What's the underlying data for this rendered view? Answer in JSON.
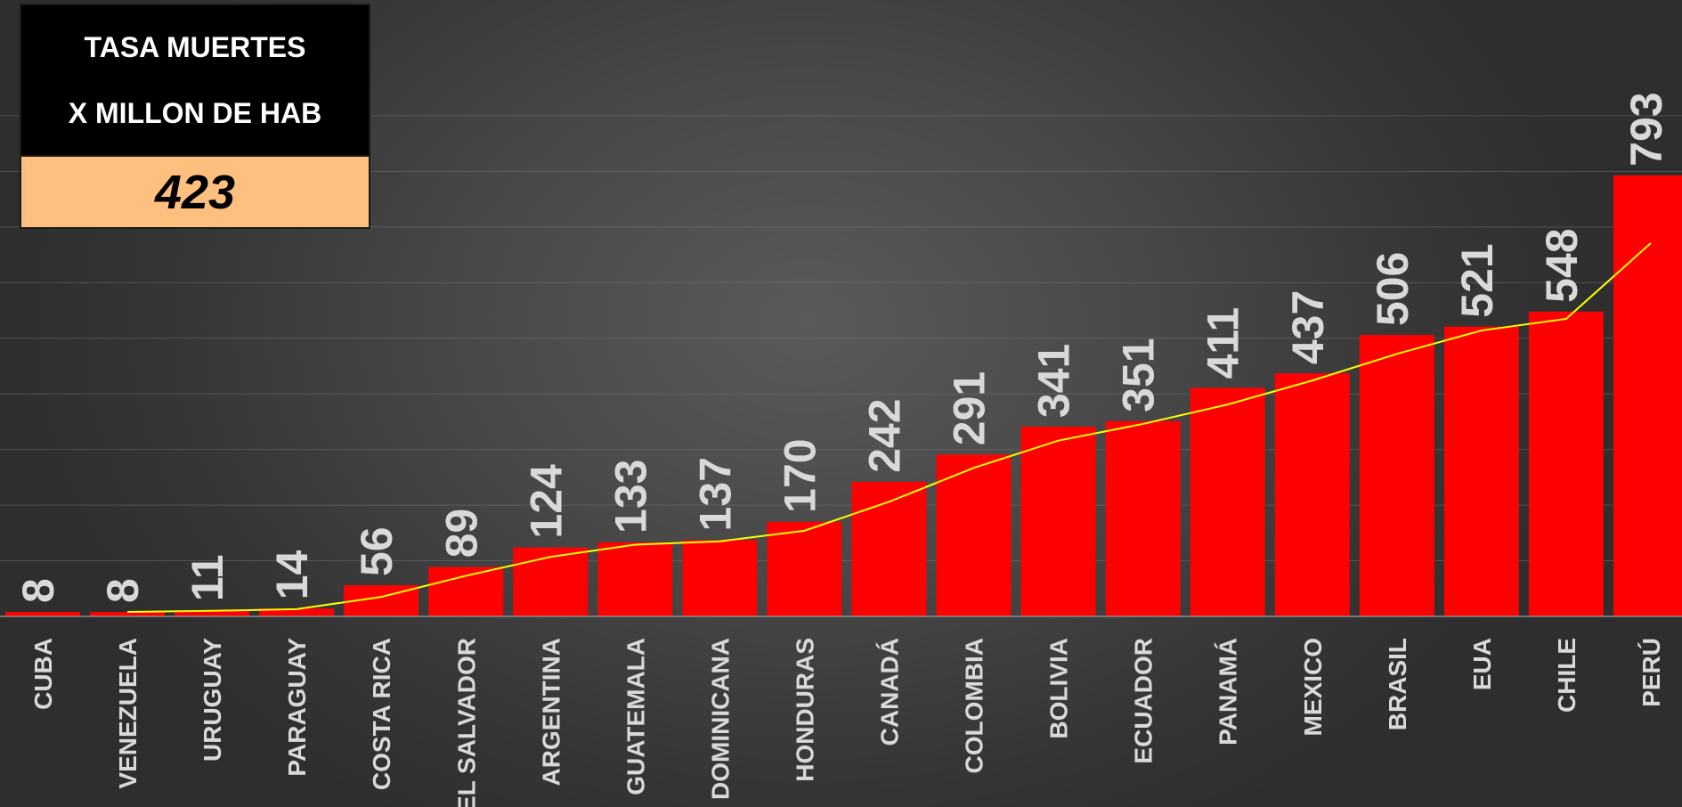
{
  "summary": {
    "line1": "TASA MUERTES",
    "line2": "X MILLON DE HAB",
    "value": "423"
  },
  "colors": {
    "bar": "#ff0000",
    "trend": "#ffff00",
    "label": "#d9d9d9",
    "summary_top_bg": "#000000",
    "summary_bottom_bg": "#ffc07f"
  },
  "chart_data": {
    "type": "bar",
    "categories": [
      "CUBA",
      "VENEZUELA",
      "URUGUAY",
      "PARAGUAY",
      "COSTA RICA",
      "EL SALVADOR",
      "ARGENTINA",
      "GUATEMALA",
      "DOMINICANA",
      "HONDURAS",
      "CANADÁ",
      "COLOMBIA",
      "BOLIVIA",
      "ECUADOR",
      "PANAMÁ",
      "MEXICO",
      "BRASIL",
      "EUA",
      "CHILE",
      "PERÚ"
    ],
    "series": [
      {
        "values": [
          8,
          8,
          11,
          14,
          56,
          89,
          124,
          133,
          137,
          170,
          242,
          291,
          341,
          351,
          411,
          437,
          506,
          521,
          548,
          793
        ]
      }
    ],
    "trendline": {
      "type": "line",
      "values": [
        null,
        8,
        10,
        13,
        35,
        73,
        107,
        129,
        135,
        154,
        206,
        267,
        316,
        346,
        381,
        424,
        472,
        514,
        535,
        671
      ]
    },
    "ylim": [
      0,
      900
    ],
    "grid": true,
    "legend": "none",
    "title": "",
    "xlabel": "",
    "ylabel": ""
  }
}
